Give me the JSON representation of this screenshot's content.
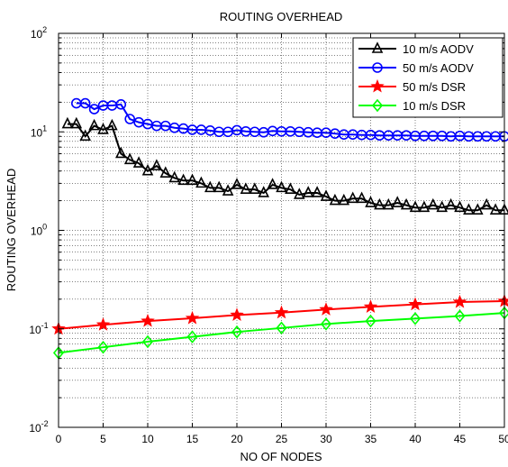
{
  "chart_data": {
    "type": "line",
    "title": "ROUTING OVERHEAD",
    "xlabel": "NO OF NODES",
    "ylabel": "ROUTING OVERHEAD",
    "xlim": [
      0,
      50
    ],
    "ylim": [
      0.01,
      100
    ],
    "yscale": "log",
    "grid": true,
    "legend_position": "top-right",
    "x_ticks": [
      {
        "value": 0,
        "label": "0"
      },
      {
        "value": 5,
        "label": "5"
      },
      {
        "value": 10,
        "label": "10"
      },
      {
        "value": 15,
        "label": "15"
      },
      {
        "value": 20,
        "label": "20"
      },
      {
        "value": 25,
        "label": "25"
      },
      {
        "value": 30,
        "label": "30"
      },
      {
        "value": 35,
        "label": "35"
      },
      {
        "value": 40,
        "label": "40"
      },
      {
        "value": 45,
        "label": "45"
      },
      {
        "value": 50,
        "label": "50"
      }
    ],
    "y_ticks": [
      {
        "value": 0.01,
        "base": "10",
        "exp": "-2"
      },
      {
        "value": 0.1,
        "base": "10",
        "exp": "-1"
      },
      {
        "value": 1,
        "base": "10",
        "exp": "0"
      },
      {
        "value": 10,
        "base": "10",
        "exp": "1"
      },
      {
        "value": 100,
        "base": "10",
        "exp": "2"
      }
    ],
    "series": [
      {
        "name": "10 m/s AODV",
        "color": "#000000",
        "marker": "triangle",
        "x": [
          1,
          2,
          3,
          4,
          5,
          6,
          7,
          8,
          9,
          10,
          11,
          12,
          13,
          14,
          15,
          16,
          17,
          18,
          19,
          20,
          21,
          22,
          23,
          24,
          25,
          26,
          27,
          28,
          29,
          30,
          31,
          32,
          33,
          34,
          35,
          36,
          37,
          38,
          39,
          40,
          41,
          42,
          43,
          44,
          45,
          46,
          47,
          48,
          49,
          50
        ],
        "y": [
          12,
          12,
          9,
          11.5,
          10.5,
          11.5,
          6,
          5.2,
          4.8,
          4,
          4.5,
          3.8,
          3.4,
          3.2,
          3.2,
          3,
          2.7,
          2.7,
          2.5,
          2.9,
          2.6,
          2.6,
          2.4,
          2.9,
          2.7,
          2.6,
          2.3,
          2.4,
          2.4,
          2.2,
          2,
          2,
          2.1,
          2.1,
          1.9,
          1.8,
          1.8,
          1.9,
          1.8,
          1.7,
          1.7,
          1.8,
          1.7,
          1.8,
          1.7,
          1.6,
          1.6,
          1.8,
          1.6,
          1.6
        ]
      },
      {
        "name": "50 m/s AODV",
        "color": "#0000ff",
        "marker": "circle",
        "x": [
          2,
          3,
          4,
          5,
          6,
          7,
          8,
          9,
          10,
          11,
          12,
          13,
          14,
          15,
          16,
          17,
          18,
          19,
          20,
          21,
          22,
          23,
          24,
          25,
          26,
          27,
          28,
          29,
          30,
          31,
          32,
          33,
          34,
          35,
          36,
          37,
          38,
          39,
          40,
          41,
          42,
          43,
          44,
          45,
          46,
          47,
          48,
          49,
          50
        ],
        "y": [
          19.5,
          19.5,
          17,
          18.5,
          18.5,
          19,
          13.5,
          12.5,
          12,
          11.5,
          11.5,
          11,
          10.8,
          10.5,
          10.5,
          10.3,
          10,
          10,
          10.4,
          10.1,
          10,
          9.9,
          10.2,
          10.1,
          10.1,
          10,
          9.9,
          9.8,
          9.8,
          9.6,
          9.4,
          9.4,
          9.3,
          9.3,
          9.2,
          9.2,
          9.2,
          9.2,
          9.1,
          9.1,
          9.1,
          9.1,
          9,
          9.1,
          9,
          9,
          9,
          9,
          9
        ]
      },
      {
        "name": "50 m/s DSR",
        "color": "#ff0000",
        "marker": "star",
        "x": [
          0,
          5,
          10,
          15,
          20,
          25,
          30,
          35,
          40,
          45,
          50
        ],
        "y": [
          0.1,
          0.11,
          0.12,
          0.128,
          0.138,
          0.146,
          0.157,
          0.167,
          0.177,
          0.187,
          0.191
        ]
      },
      {
        "name": "10 m/s DSR",
        "color": "#00ff00",
        "marker": "diamond",
        "x": [
          0,
          5,
          10,
          15,
          20,
          25,
          30,
          35,
          40,
          45,
          50
        ],
        "y": [
          0.057,
          0.065,
          0.074,
          0.083,
          0.093,
          0.102,
          0.112,
          0.12,
          0.127,
          0.135,
          0.145
        ]
      }
    ]
  }
}
